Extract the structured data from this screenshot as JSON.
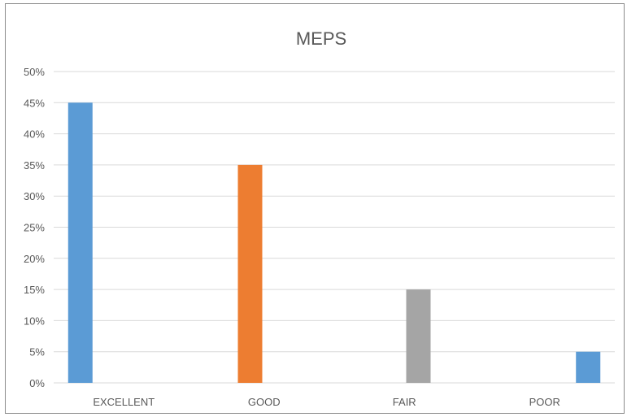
{
  "chart_data": {
    "type": "bar",
    "title": "MEPS",
    "categories": [
      "EXCELLENT",
      "GOOD",
      "FAIR",
      "POOR"
    ],
    "values": [
      45,
      35,
      15,
      5
    ],
    "value_unit": "%",
    "ylim": [
      0,
      50
    ],
    "y_ticks": [
      "0%",
      "5%",
      "10%",
      "15%",
      "20%",
      "25%",
      "30%",
      "35%",
      "40%",
      "45%",
      "50%"
    ],
    "bar_colors": [
      "#5b9bd5",
      "#ed7d31",
      "#a5a5a5",
      "#5b9bd5"
    ],
    "grid": true,
    "legend": "none"
  },
  "colors": {
    "text": "#595959",
    "grid": "#d9d9d9",
    "border": "#8c8c8c"
  }
}
